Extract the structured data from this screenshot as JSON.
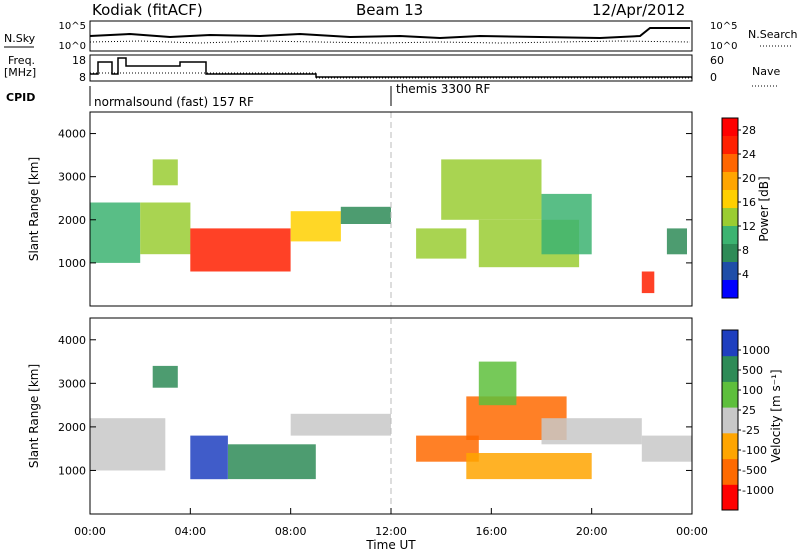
{
  "header": {
    "station": "Kodiak (fitACF)",
    "beam": "Beam 13",
    "date": "12/Apr/2012"
  },
  "top_panels": {
    "nsky_label": "N.Sky",
    "nsearch_label": "N.Search",
    "freq_label_line1": "Freq.",
    "freq_label_line2": "[MHz]",
    "nave_label": "Nave",
    "cpid_label": "CPID",
    "noise_ticks_left": [
      "10^5",
      "10^0"
    ],
    "noise_ticks_right": [
      "10^5",
      "10^0"
    ],
    "freq_ticks": [
      "18",
      "8"
    ],
    "nave_ticks": [
      "60",
      "0"
    ],
    "cpid_segments": [
      {
        "label": "normalsound (fast) 157 RF",
        "start_hour": 0
      },
      {
        "label": "themis 3300 RF",
        "start_hour": 12
      }
    ]
  },
  "chart_data": [
    {
      "type": "heatmap",
      "title": "Power",
      "ylabel": "Slant Range [km]",
      "xlabel": "Time UT",
      "xlim_hours": [
        0,
        24
      ],
      "ylim": [
        0,
        4500
      ],
      "y_ticks": [
        "1000",
        "2000",
        "3000",
        "4000"
      ],
      "colorbar": {
        "label": "Power [dB]",
        "ticks": [
          "4",
          "8",
          "12",
          "16",
          "20",
          "24",
          "28"
        ],
        "range": [
          0,
          30
        ],
        "colors": [
          "#0000ff",
          "#1f4ea8",
          "#2e8b57",
          "#3cb371",
          "#9acd32",
          "#ffd000",
          "#ffa500",
          "#ff6600",
          "#ff2000",
          "#ff0000"
        ]
      },
      "echo_regions": [
        {
          "t0": 0.0,
          "t1": 2.0,
          "r0": 1000,
          "r1": 2400,
          "value": 10
        },
        {
          "t0": 2.0,
          "t1": 4.0,
          "r0": 1200,
          "r1": 2400,
          "value": 14
        },
        {
          "t0": 2.5,
          "t1": 3.5,
          "r0": 2800,
          "r1": 3400,
          "value": 12
        },
        {
          "t0": 4.0,
          "t1": 8.0,
          "r0": 800,
          "r1": 1800,
          "value": 26
        },
        {
          "t0": 8.0,
          "t1": 10.0,
          "r0": 1500,
          "r1": 2200,
          "value": 16
        },
        {
          "t0": 10.0,
          "t1": 12.0,
          "r0": 1900,
          "r1": 2300,
          "value": 8
        },
        {
          "t0": 13.0,
          "t1": 15.0,
          "r0": 1100,
          "r1": 1800,
          "value": 12
        },
        {
          "t0": 14.0,
          "t1": 18.0,
          "r0": 2000,
          "r1": 3400,
          "value": 12
        },
        {
          "t0": 15.5,
          "t1": 19.5,
          "r0": 900,
          "r1": 2000,
          "value": 14
        },
        {
          "t0": 18.0,
          "t1": 20.0,
          "r0": 1200,
          "r1": 2600,
          "value": 10
        },
        {
          "t0": 22.0,
          "t1": 22.5,
          "r0": 300,
          "r1": 800,
          "value": 24
        },
        {
          "t0": 23.0,
          "t1": 23.8,
          "r0": 1200,
          "r1": 1800,
          "value": 8
        }
      ]
    },
    {
      "type": "heatmap",
      "title": "Velocity",
      "ylabel": "Slant Range [km]",
      "xlabel": "Time UT",
      "xlim_hours": [
        0,
        24
      ],
      "ylim": [
        0,
        4500
      ],
      "y_ticks": [
        "1000",
        "2000",
        "3000",
        "4000"
      ],
      "x_ticks": [
        "00:00",
        "04:00",
        "08:00",
        "12:00",
        "16:00",
        "20:00",
        "00:00"
      ],
      "colorbar": {
        "label": "Velocity [m s⁻¹]",
        "ticks": [
          "1000",
          "500",
          "100",
          "25",
          "-25",
          "-100",
          "-500",
          "-1000"
        ],
        "colors": [
          "#1f3fbf",
          "#2e8b57",
          "#5ebf3c",
          "#c8c8c8",
          "#ffa500",
          "#ff6a00",
          "#ff0000"
        ]
      },
      "echo_regions": [
        {
          "t0": 0.0,
          "t1": 3.0,
          "r0": 1000,
          "r1": 2200,
          "value": 0
        },
        {
          "t0": 2.5,
          "t1": 3.5,
          "r0": 2900,
          "r1": 3400,
          "value": 300
        },
        {
          "t0": 4.0,
          "t1": 5.5,
          "r0": 800,
          "r1": 1800,
          "value": 800
        },
        {
          "t0": 5.5,
          "t1": 9.0,
          "r0": 800,
          "r1": 1600,
          "value": 300
        },
        {
          "t0": 8.0,
          "t1": 12.0,
          "r0": 1800,
          "r1": 2300,
          "value": 0
        },
        {
          "t0": 13.0,
          "t1": 15.5,
          "r0": 1200,
          "r1": 1800,
          "value": -400
        },
        {
          "t0": 15.0,
          "t1": 19.0,
          "r0": 1700,
          "r1": 2700,
          "value": -400
        },
        {
          "t0": 15.5,
          "t1": 17.0,
          "r0": 2500,
          "r1": 3500,
          "value": 100
        },
        {
          "t0": 15.0,
          "t1": 20.0,
          "r0": 800,
          "r1": 1400,
          "value": -200
        },
        {
          "t0": 18.0,
          "t1": 22.0,
          "r0": 1600,
          "r1": 2200,
          "value": 0
        },
        {
          "t0": 22.0,
          "t1": 24.0,
          "r0": 1200,
          "r1": 1800,
          "value": 0
        }
      ]
    }
  ]
}
